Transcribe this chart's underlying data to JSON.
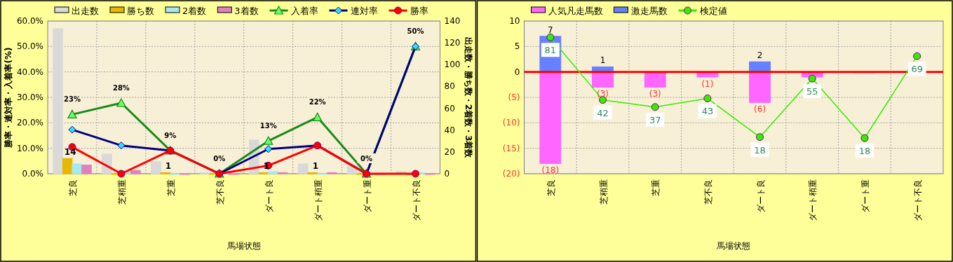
{
  "chart_data": [
    {
      "type": "bar",
      "categories": [
        "芝良",
        "芝稍重",
        "芝重",
        "芝不良",
        "ダート良",
        "ダート稍重",
        "ダート重",
        "ダート不良"
      ],
      "xlabel": "馬場状態",
      "ylabel": "勝率・連対率・入着率(%)",
      "y2label": "出走数・勝ち数・2着数・3着数",
      "ylim": [
        0,
        60
      ],
      "yticks": [
        {
          "value": 0,
          "label": "0.0%"
        },
        {
          "value": 10,
          "label": "10.0%"
        },
        {
          "value": 20,
          "label": "20.0%"
        },
        {
          "value": 30,
          "label": "30.0%"
        },
        {
          "value": 40,
          "label": "40.0%"
        },
        {
          "value": 50,
          "label": "50.0%"
        },
        {
          "value": 60,
          "label": "60.0%"
        }
      ],
      "y2lim": [
        0,
        140
      ],
      "y2ticks": [
        0,
        20,
        40,
        60,
        80,
        100,
        120,
        140
      ],
      "grid": true,
      "legend": "top",
      "series": [
        {
          "name": "出走数",
          "type": "bar",
          "axis": "y2",
          "color": "#d9d9d9",
          "values": [
            133,
            18,
            11,
            1,
            31,
            9,
            7,
            2
          ]
        },
        {
          "name": "勝ち数",
          "type": "bar",
          "axis": "y2",
          "color": "#e6b800",
          "values": [
            14,
            0,
            1,
            0,
            1,
            1,
            0,
            0
          ],
          "value_labels": [
            "14",
            null,
            "1",
            null,
            "1",
            "1",
            null,
            null
          ]
        },
        {
          "name": "2着数",
          "type": "bar",
          "axis": "y2",
          "color": "#a8e8f0",
          "values": [
            9,
            2,
            0,
            0,
            2,
            0,
            0,
            1
          ]
        },
        {
          "name": "3着数",
          "type": "bar",
          "axis": "y2",
          "color": "#e080c0",
          "values": [
            8,
            3,
            0,
            0,
            1,
            1,
            0,
            0
          ]
        },
        {
          "name": "入着率",
          "type": "line",
          "color": "#1a8a1a",
          "marker": "triangle",
          "values": [
            23.3,
            27.8,
            9.1,
            0,
            12.9,
            22.2,
            0,
            50
          ],
          "value_labels": [
            "23%",
            "28%",
            "9%",
            "0%",
            "13%",
            "22%",
            "0%",
            "50%"
          ]
        },
        {
          "name": "連対率",
          "type": "line",
          "color": "#00007f",
          "marker": "diamond",
          "values": [
            17.3,
            11.1,
            9.1,
            0,
            9.7,
            11.1,
            0,
            50
          ]
        },
        {
          "name": "勝率",
          "type": "line",
          "color": "#ff0000",
          "marker": "circle",
          "values": [
            10.5,
            0,
            9.1,
            0,
            3.2,
            11.1,
            0,
            0
          ]
        }
      ]
    },
    {
      "type": "bar",
      "stacked": true,
      "categories": [
        "芝良",
        "芝稍重",
        "芝重",
        "芝不良",
        "ダート良",
        "ダート稍重",
        "ダート重",
        "ダート不良"
      ],
      "xlabel": "馬場状態",
      "ylim": [
        -20,
        10
      ],
      "yticks": [
        10,
        5,
        0,
        {
          "value": -5,
          "label": "(5)"
        },
        {
          "value": -10,
          "label": "(10)"
        },
        {
          "value": -15,
          "label": "(15)"
        },
        {
          "value": -20,
          "label": "(20)"
        }
      ],
      "grid": true,
      "legend": "top",
      "ref_lines": [
        {
          "axis": "y",
          "value": 0,
          "color": "#ff0000"
        }
      ],
      "series": [
        {
          "name": "人気凡走馬数",
          "type": "bar",
          "color": "#ff66ff",
          "values": [
            -18,
            -3,
            -3,
            -1,
            -6,
            -1,
            0,
            0
          ],
          "value_labels": [
            "(18)",
            "(3)",
            "(3)",
            "(1)",
            "(6)",
            null,
            null,
            null
          ]
        },
        {
          "name": "激走馬数",
          "type": "bar",
          "color": "#6680ff",
          "values": [
            7,
            1,
            0,
            0,
            2,
            0,
            0,
            0
          ],
          "value_labels": [
            "7",
            "1",
            null,
            null,
            "2",
            null,
            null,
            null
          ]
        },
        {
          "name": "検定値",
          "type": "line",
          "color": "#33ee00",
          "marker": "circle",
          "values": [
            6.8,
            -5.5,
            -6.9,
            -5.2,
            -12.8,
            -1.3,
            -13,
            3.1
          ]
        }
      ],
      "annotations": [
        {
          "text": "81",
          "x": "芝良",
          "y": 6.8
        },
        {
          "text": "42",
          "x": "芝稍重",
          "y": -5.5
        },
        {
          "text": "37",
          "x": "芝重",
          "y": -6.9
        },
        {
          "text": "43",
          "x": "芝不良",
          "y": -5.2
        },
        {
          "text": "18",
          "x": "ダート良",
          "y": -12.8
        },
        {
          "text": "55",
          "x": "ダート稍重",
          "y": -1.3
        },
        {
          "text": "18",
          "x": "ダート重",
          "y": -13
        },
        {
          "text": "69",
          "x": "ダート不良",
          "y": 3.1
        }
      ]
    }
  ]
}
